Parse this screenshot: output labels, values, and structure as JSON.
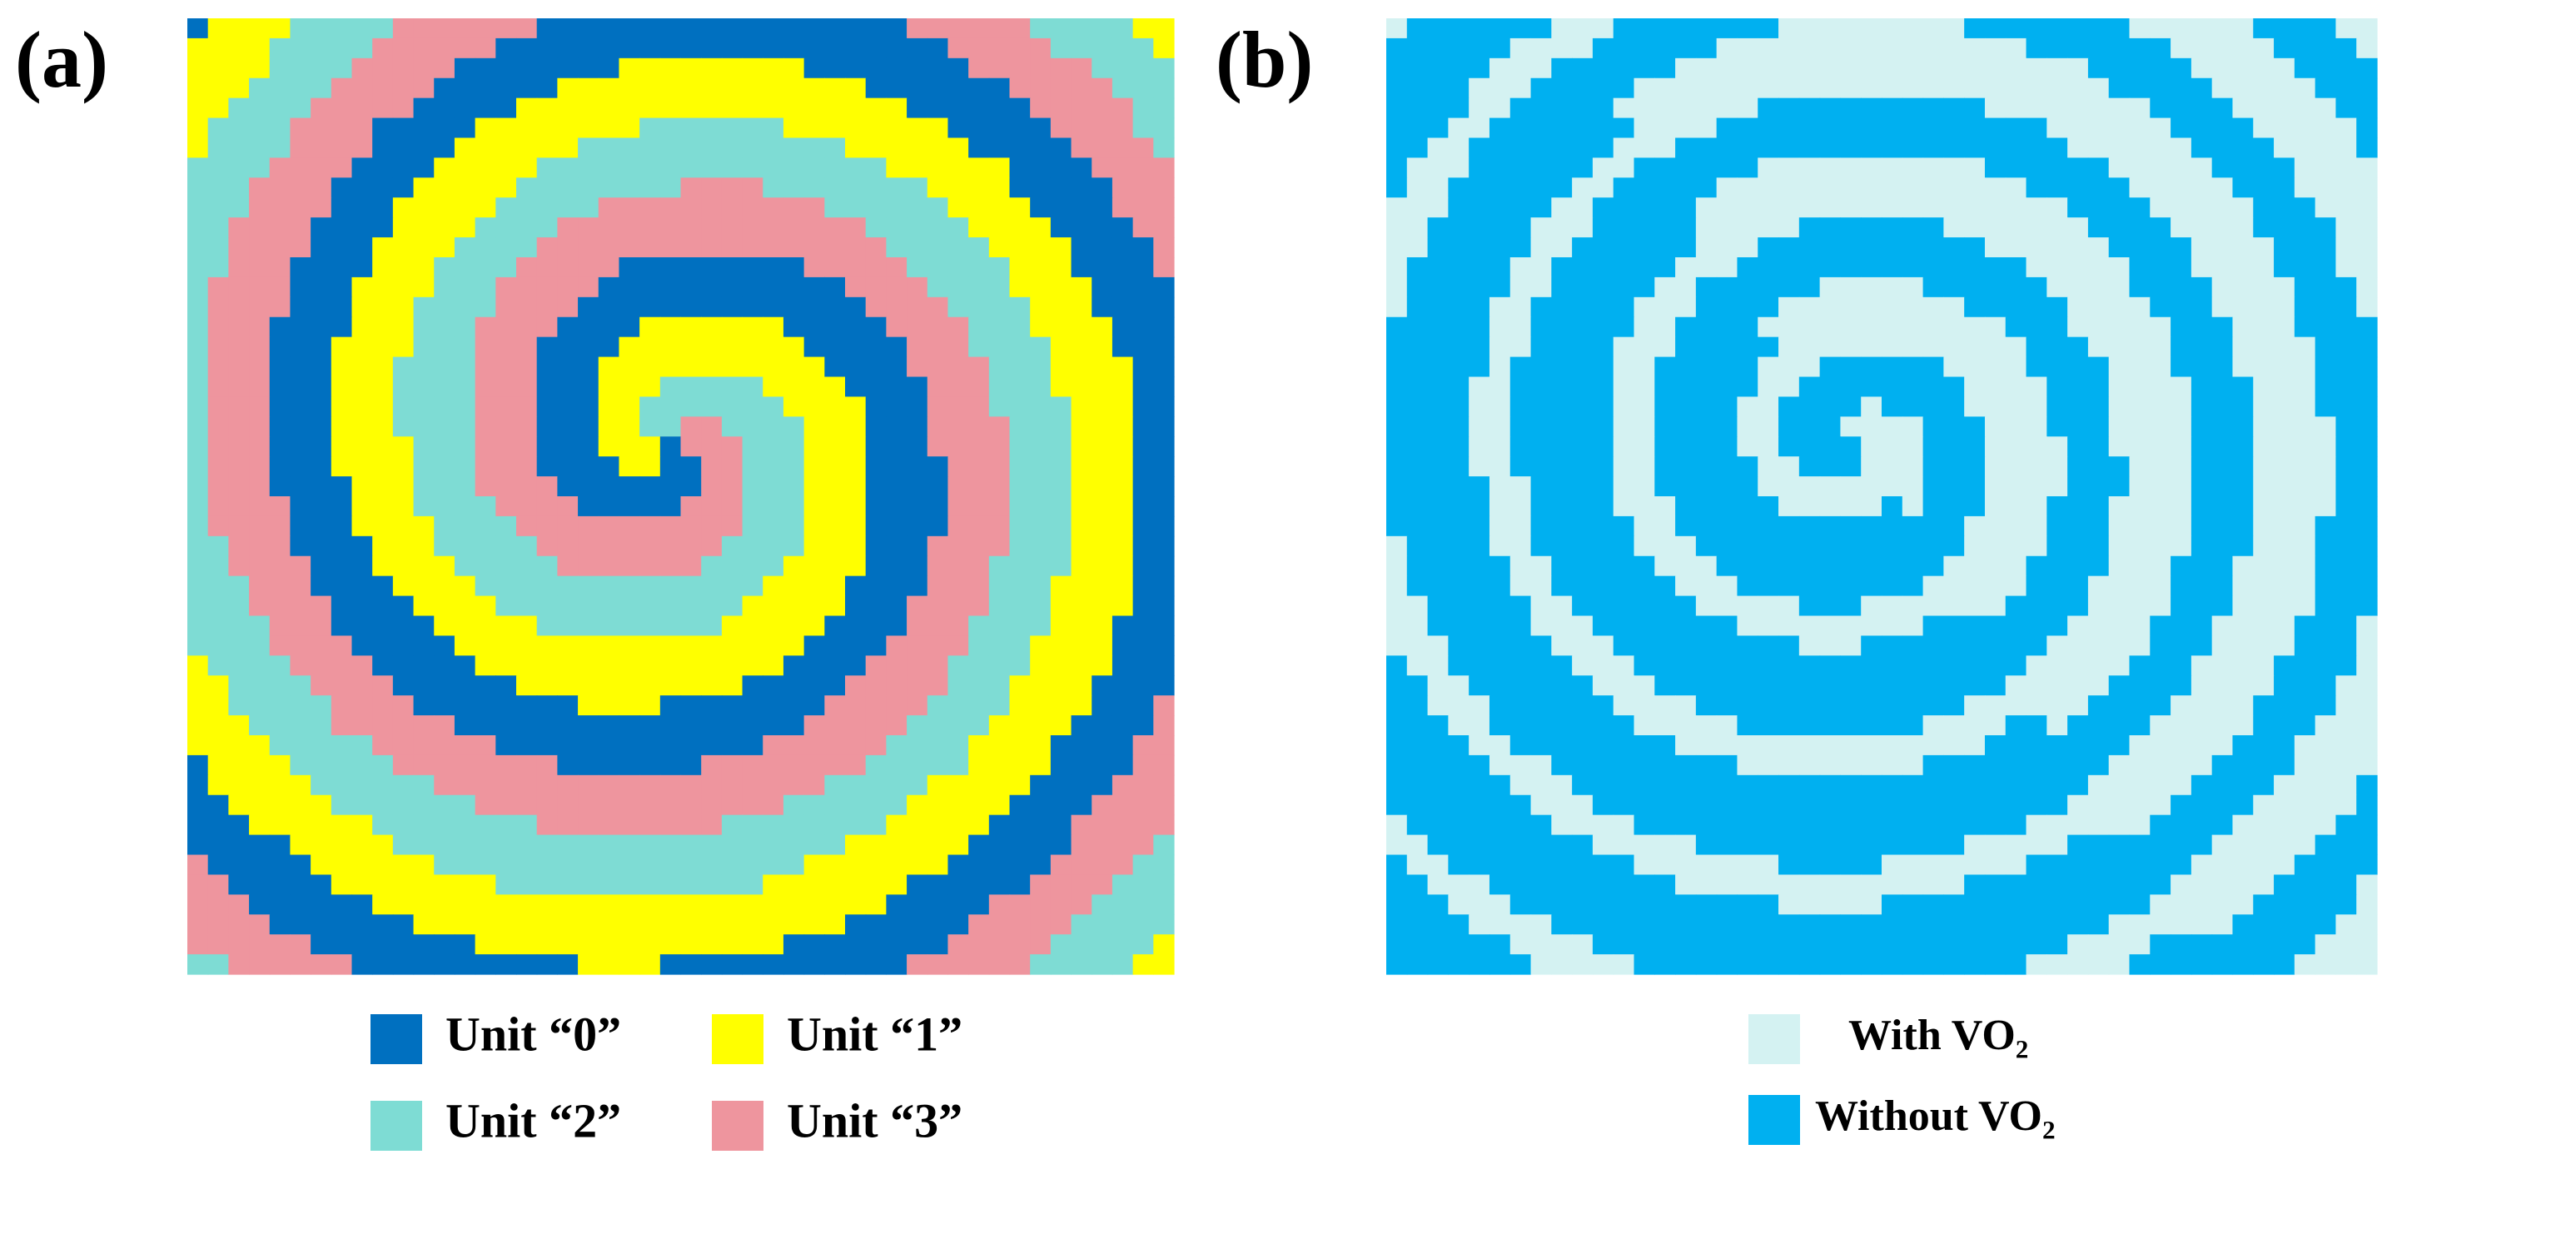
{
  "panels": [
    {
      "label": "(a)",
      "legend": [
        {
          "label": "Unit “0”",
          "color": "#0070c0"
        },
        {
          "label": "Unit “1”",
          "color": "#ffff00"
        },
        {
          "label": "Unit “2”",
          "color": "#7edcd4"
        },
        {
          "label": "Unit “3”",
          "color": "#ee959e"
        }
      ]
    },
    {
      "label": "(b)",
      "legend": [
        {
          "label": "With VO₂",
          "color": "#d4f2f2"
        },
        {
          "label": "Without VO₂",
          "color": "#00b0f0"
        }
      ]
    }
  ]
}
